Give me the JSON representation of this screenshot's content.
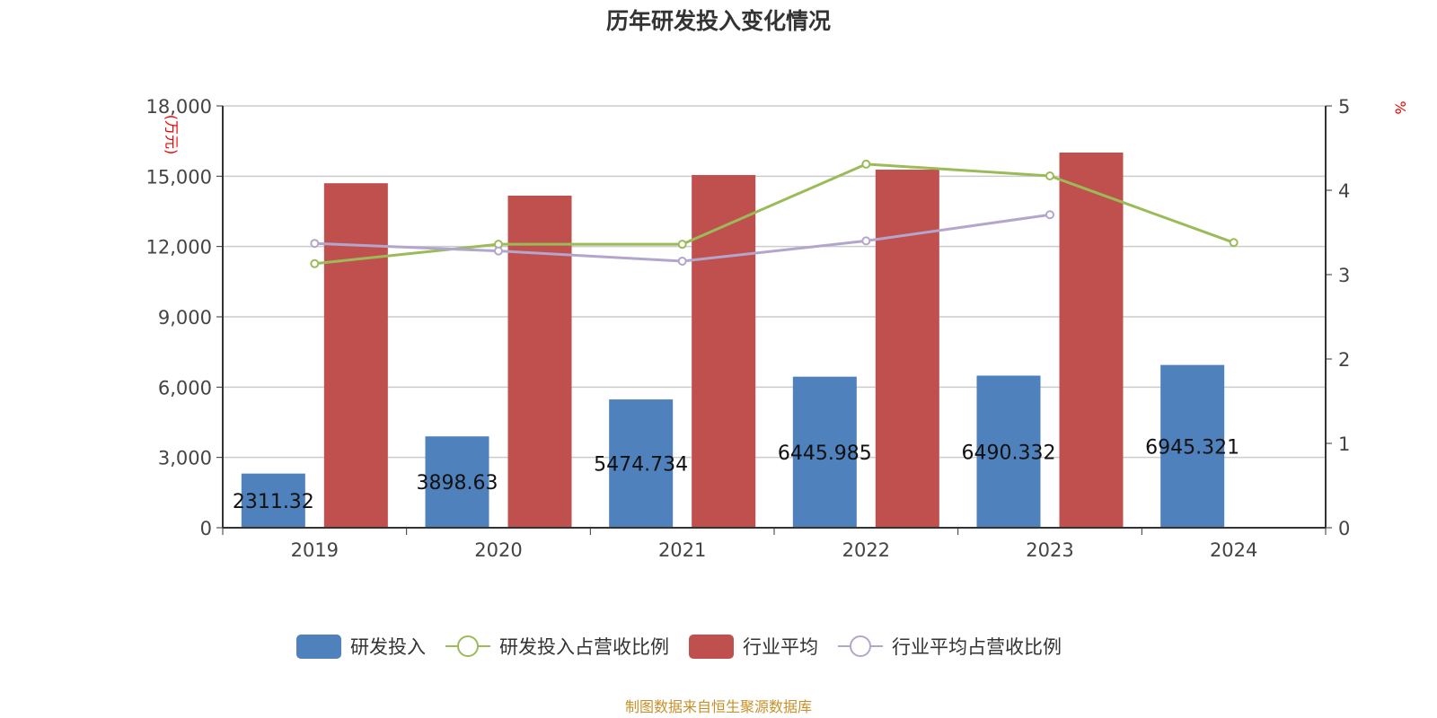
{
  "chart_data": {
    "type": "bar",
    "title": "历年研发投入变化情况",
    "categories": [
      "2019",
      "2020",
      "2021",
      "2022",
      "2023",
      "2024"
    ],
    "y_left": {
      "label": "(万元)",
      "range": [
        0,
        18000
      ],
      "ticks": [
        0,
        3000,
        6000,
        9000,
        12000,
        15000,
        18000
      ],
      "tick_labels": [
        "0",
        "3,000",
        "6,000",
        "9,000",
        "12,000",
        "15,000",
        "18,000"
      ]
    },
    "y_right": {
      "label": "%",
      "range": [
        0,
        5
      ],
      "ticks": [
        0,
        1,
        2,
        3,
        4,
        5
      ],
      "tick_labels": [
        "0",
        "1",
        "2",
        "3",
        "4",
        "5"
      ]
    },
    "series": [
      {
        "name": "研发投入",
        "type": "bar",
        "axis": "left",
        "color": "#4f81bd",
        "values": [
          2311.32,
          3898.63,
          5474.734,
          6445.985,
          6490.332,
          6945.321
        ],
        "labels": [
          "2311.32",
          "3898.63",
          "5474.734",
          "6445.985",
          "6490.332",
          "6945.321"
        ]
      },
      {
        "name": "研发投入占营收比例",
        "type": "line",
        "axis": "right",
        "color": "#9bbb59",
        "values": [
          3.13,
          3.36,
          3.36,
          4.31,
          4.17,
          3.38
        ]
      },
      {
        "name": "行业平均",
        "type": "bar",
        "axis": "left",
        "color": "#c0504d",
        "values": [
          14700,
          14170,
          15050,
          15280,
          16010,
          null
        ]
      },
      {
        "name": "行业平均占营收比例",
        "type": "line",
        "axis": "right",
        "color": "#b3a6cc",
        "values": [
          3.37,
          3.28,
          3.16,
          3.4,
          3.71,
          null
        ]
      }
    ],
    "grid": true,
    "legend_position": "bottom"
  },
  "footer": "制图数据来自恒生聚源数据库"
}
